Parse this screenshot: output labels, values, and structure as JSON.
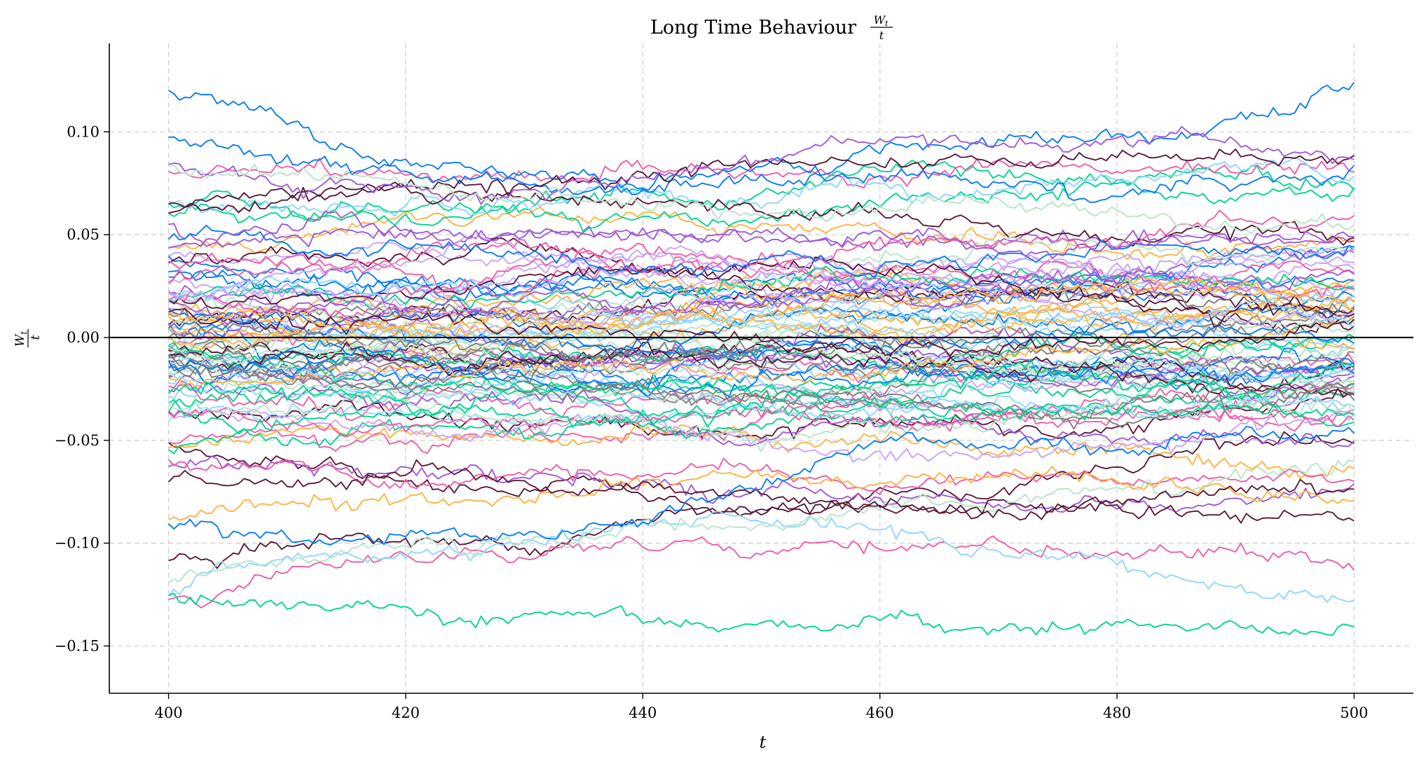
{
  "chart_data": {
    "type": "line",
    "title": "Long Time Behaviour",
    "title_fraction": {
      "numerator": "W",
      "numerator_sub": "t",
      "denominator": "t"
    },
    "xlabel": "t",
    "ylabel_fraction": {
      "numerator": "W",
      "numerator_sub": "t",
      "denominator": "t"
    },
    "xlim": [
      395,
      505
    ],
    "ylim": [
      -0.173,
      0.143
    ],
    "xticks": [
      400,
      420,
      440,
      460,
      480,
      500
    ],
    "xtick_labels": [
      "400",
      "420",
      "440",
      "460",
      "480",
      "500"
    ],
    "yticks": [
      0.1,
      0.05,
      0.0,
      -0.05,
      -0.1,
      -0.15
    ],
    "ytick_labels": [
      "0.10",
      "0.05",
      "0.00",
      "−0.05",
      "−0.10",
      "−0.15"
    ],
    "grid": true,
    "reference_line_y": 0.0,
    "x_start": 400,
    "x_end": 500,
    "num_series": 100,
    "palette": [
      "#0a7cf5",
      "#a15ad6",
      "#5b1b3a",
      "#ffb23f",
      "#00d68f",
      "#f05ca8",
      "#8fd6ff",
      "#b7e4c7",
      "#7f7f7f",
      "#c9a4f7"
    ],
    "highlighted_series": [
      {
        "color": "#0a7cf5",
        "start": 0.12,
        "mid": 0.087,
        "end": 0.124
      },
      {
        "color": "#0a7cf5",
        "start": 0.095,
        "mid": 0.092,
        "end": 0.085
      },
      {
        "color": "#5b1b3a",
        "start": 0.066,
        "mid": 0.078,
        "end": 0.087
      },
      {
        "color": "#a15ad6",
        "start": 0.085,
        "mid": 0.08,
        "end": 0.087
      },
      {
        "color": "#b7e4c7",
        "start": 0.082,
        "mid": 0.066,
        "end": 0.055
      },
      {
        "color": "#5b1b3a",
        "start": -0.108,
        "mid": -0.092,
        "end": -0.088
      },
      {
        "color": "#f05ca8",
        "start": -0.127,
        "mid": -0.092,
        "end": -0.113
      },
      {
        "color": "#8fd6ff",
        "start": -0.125,
        "mid": -0.102,
        "end": -0.128
      },
      {
        "color": "#b7e4c7",
        "start": -0.118,
        "mid": -0.095,
        "end": -0.06
      },
      {
        "color": "#00d68f",
        "start": -0.125,
        "mid": -0.138,
        "end": -0.141
      },
      {
        "color": "#ffb23f",
        "start": -0.087,
        "mid": -0.07,
        "end": -0.08
      },
      {
        "color": "#5b1b3a",
        "start": -0.068,
        "mid": -0.075,
        "end": -0.072
      },
      {
        "color": "#0a7cf5",
        "start": -0.09,
        "mid": -0.075,
        "end": -0.045
      }
    ]
  }
}
